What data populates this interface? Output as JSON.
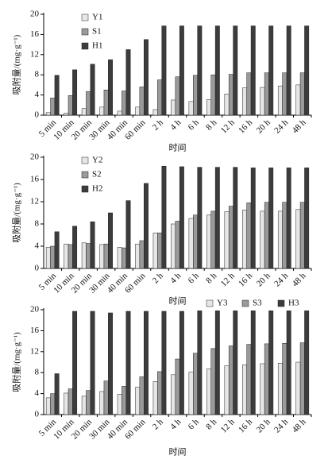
{
  "chart_data": [
    {
      "type": "bar",
      "xlabel": "时间",
      "ylabel": "吸附量/(mg·g⁻¹)",
      "categories": [
        "5 min",
        "10 min",
        "20 min",
        "30 min",
        "40 min",
        "60 min",
        "2 h",
        "4 h",
        "6 h",
        "8 h",
        "12 h",
        "16 h",
        "20 h",
        "24 h",
        "48 h"
      ],
      "series": [
        {
          "name": "Y1",
          "color": "#e6e6e6",
          "values": [
            0.5,
            0.4,
            1.3,
            1.6,
            0.8,
            1.6,
            1.1,
            3.0,
            2.7,
            3.1,
            4.2,
            5.4,
            5.5,
            5.8,
            6.0
          ]
        },
        {
          "name": "S1",
          "color": "#9a9a9a",
          "values": [
            3.4,
            3.9,
            4.7,
            5.0,
            4.8,
            5.6,
            7.0,
            7.6,
            7.9,
            8.0,
            8.1,
            8.4,
            8.4,
            8.4,
            8.4
          ]
        },
        {
          "name": "H1",
          "color": "#3c3c3c",
          "values": [
            7.9,
            9.0,
            10.1,
            11.0,
            13.0,
            15.0,
            17.7,
            17.7,
            17.7,
            17.7,
            17.7,
            17.7,
            17.7,
            17.7,
            17.7
          ]
        }
      ],
      "ylim": [
        0,
        20
      ],
      "yticks": [
        0,
        4,
        8,
        12,
        16,
        20
      ],
      "legend": "upper left"
    },
    {
      "type": "bar",
      "xlabel": "时间",
      "ylabel": "吸附量/(mg·g⁻¹)",
      "categories": [
        "5 min",
        "10 min",
        "20 min",
        "30 min",
        "40 min",
        "60 min",
        "2 h",
        "4 h",
        "6 h",
        "8 h",
        "12 h",
        "16 h",
        "20 h",
        "24 h",
        "48 h"
      ],
      "series": [
        {
          "name": "Y2",
          "color": "#e6e6e6",
          "values": [
            3.8,
            4.4,
            4.6,
            4.3,
            3.8,
            4.4,
            6.4,
            8.0,
            9.0,
            9.6,
            10.2,
            10.5,
            10.3,
            10.3,
            10.6
          ]
        },
        {
          "name": "S2",
          "color": "#9a9a9a",
          "values": [
            4.0,
            4.3,
            4.5,
            4.4,
            3.7,
            5.0,
            6.4,
            8.5,
            9.6,
            10.3,
            11.2,
            11.8,
            11.9,
            11.9,
            11.9
          ]
        },
        {
          "name": "H2",
          "color": "#3c3c3c",
          "values": [
            6.6,
            7.6,
            8.4,
            10.0,
            12.2,
            15.3,
            18.4,
            18.3,
            18.2,
            18.2,
            18.2,
            18.1,
            18.1,
            18.1,
            18.1
          ]
        }
      ],
      "ylim": [
        0,
        20
      ],
      "yticks": [
        0,
        4,
        8,
        12,
        16,
        20
      ],
      "legend": "upper left"
    },
    {
      "type": "bar",
      "xlabel": "时间",
      "ylabel": "吸附量/(mg·g⁻¹)",
      "categories": [
        "5 min",
        "10 min",
        "20 min",
        "30 min",
        "40 min",
        "60 min",
        "2 h",
        "4 h",
        "6 h",
        "8 h",
        "12 h",
        "16 h",
        "20 h",
        "24 h",
        "48 h"
      ],
      "series": [
        {
          "name": "Y3",
          "color": "#e6e6e6",
          "values": [
            3.2,
            4.1,
            3.5,
            4.4,
            3.9,
            5.2,
            6.3,
            7.6,
            8.1,
            8.7,
            9.3,
            9.5,
            9.7,
            9.8,
            10.0
          ]
        },
        {
          "name": "S3",
          "color": "#9a9a9a",
          "values": [
            4.0,
            4.9,
            4.6,
            6.4,
            5.4,
            7.2,
            8.2,
            10.6,
            11.7,
            12.6,
            13.1,
            13.4,
            13.5,
            13.6,
            13.7
          ]
        },
        {
          "name": "H3",
          "color": "#3c3c3c",
          "values": [
            7.8,
            19.7,
            19.7,
            19.4,
            19.7,
            19.7,
            19.7,
            19.7,
            19.8,
            19.8,
            19.8,
            19.8,
            19.8,
            19.8,
            19.8
          ]
        }
      ],
      "ylim": [
        0,
        20
      ],
      "yticks": [
        0,
        4,
        8,
        12,
        16,
        20
      ],
      "legend": "upper right"
    }
  ]
}
